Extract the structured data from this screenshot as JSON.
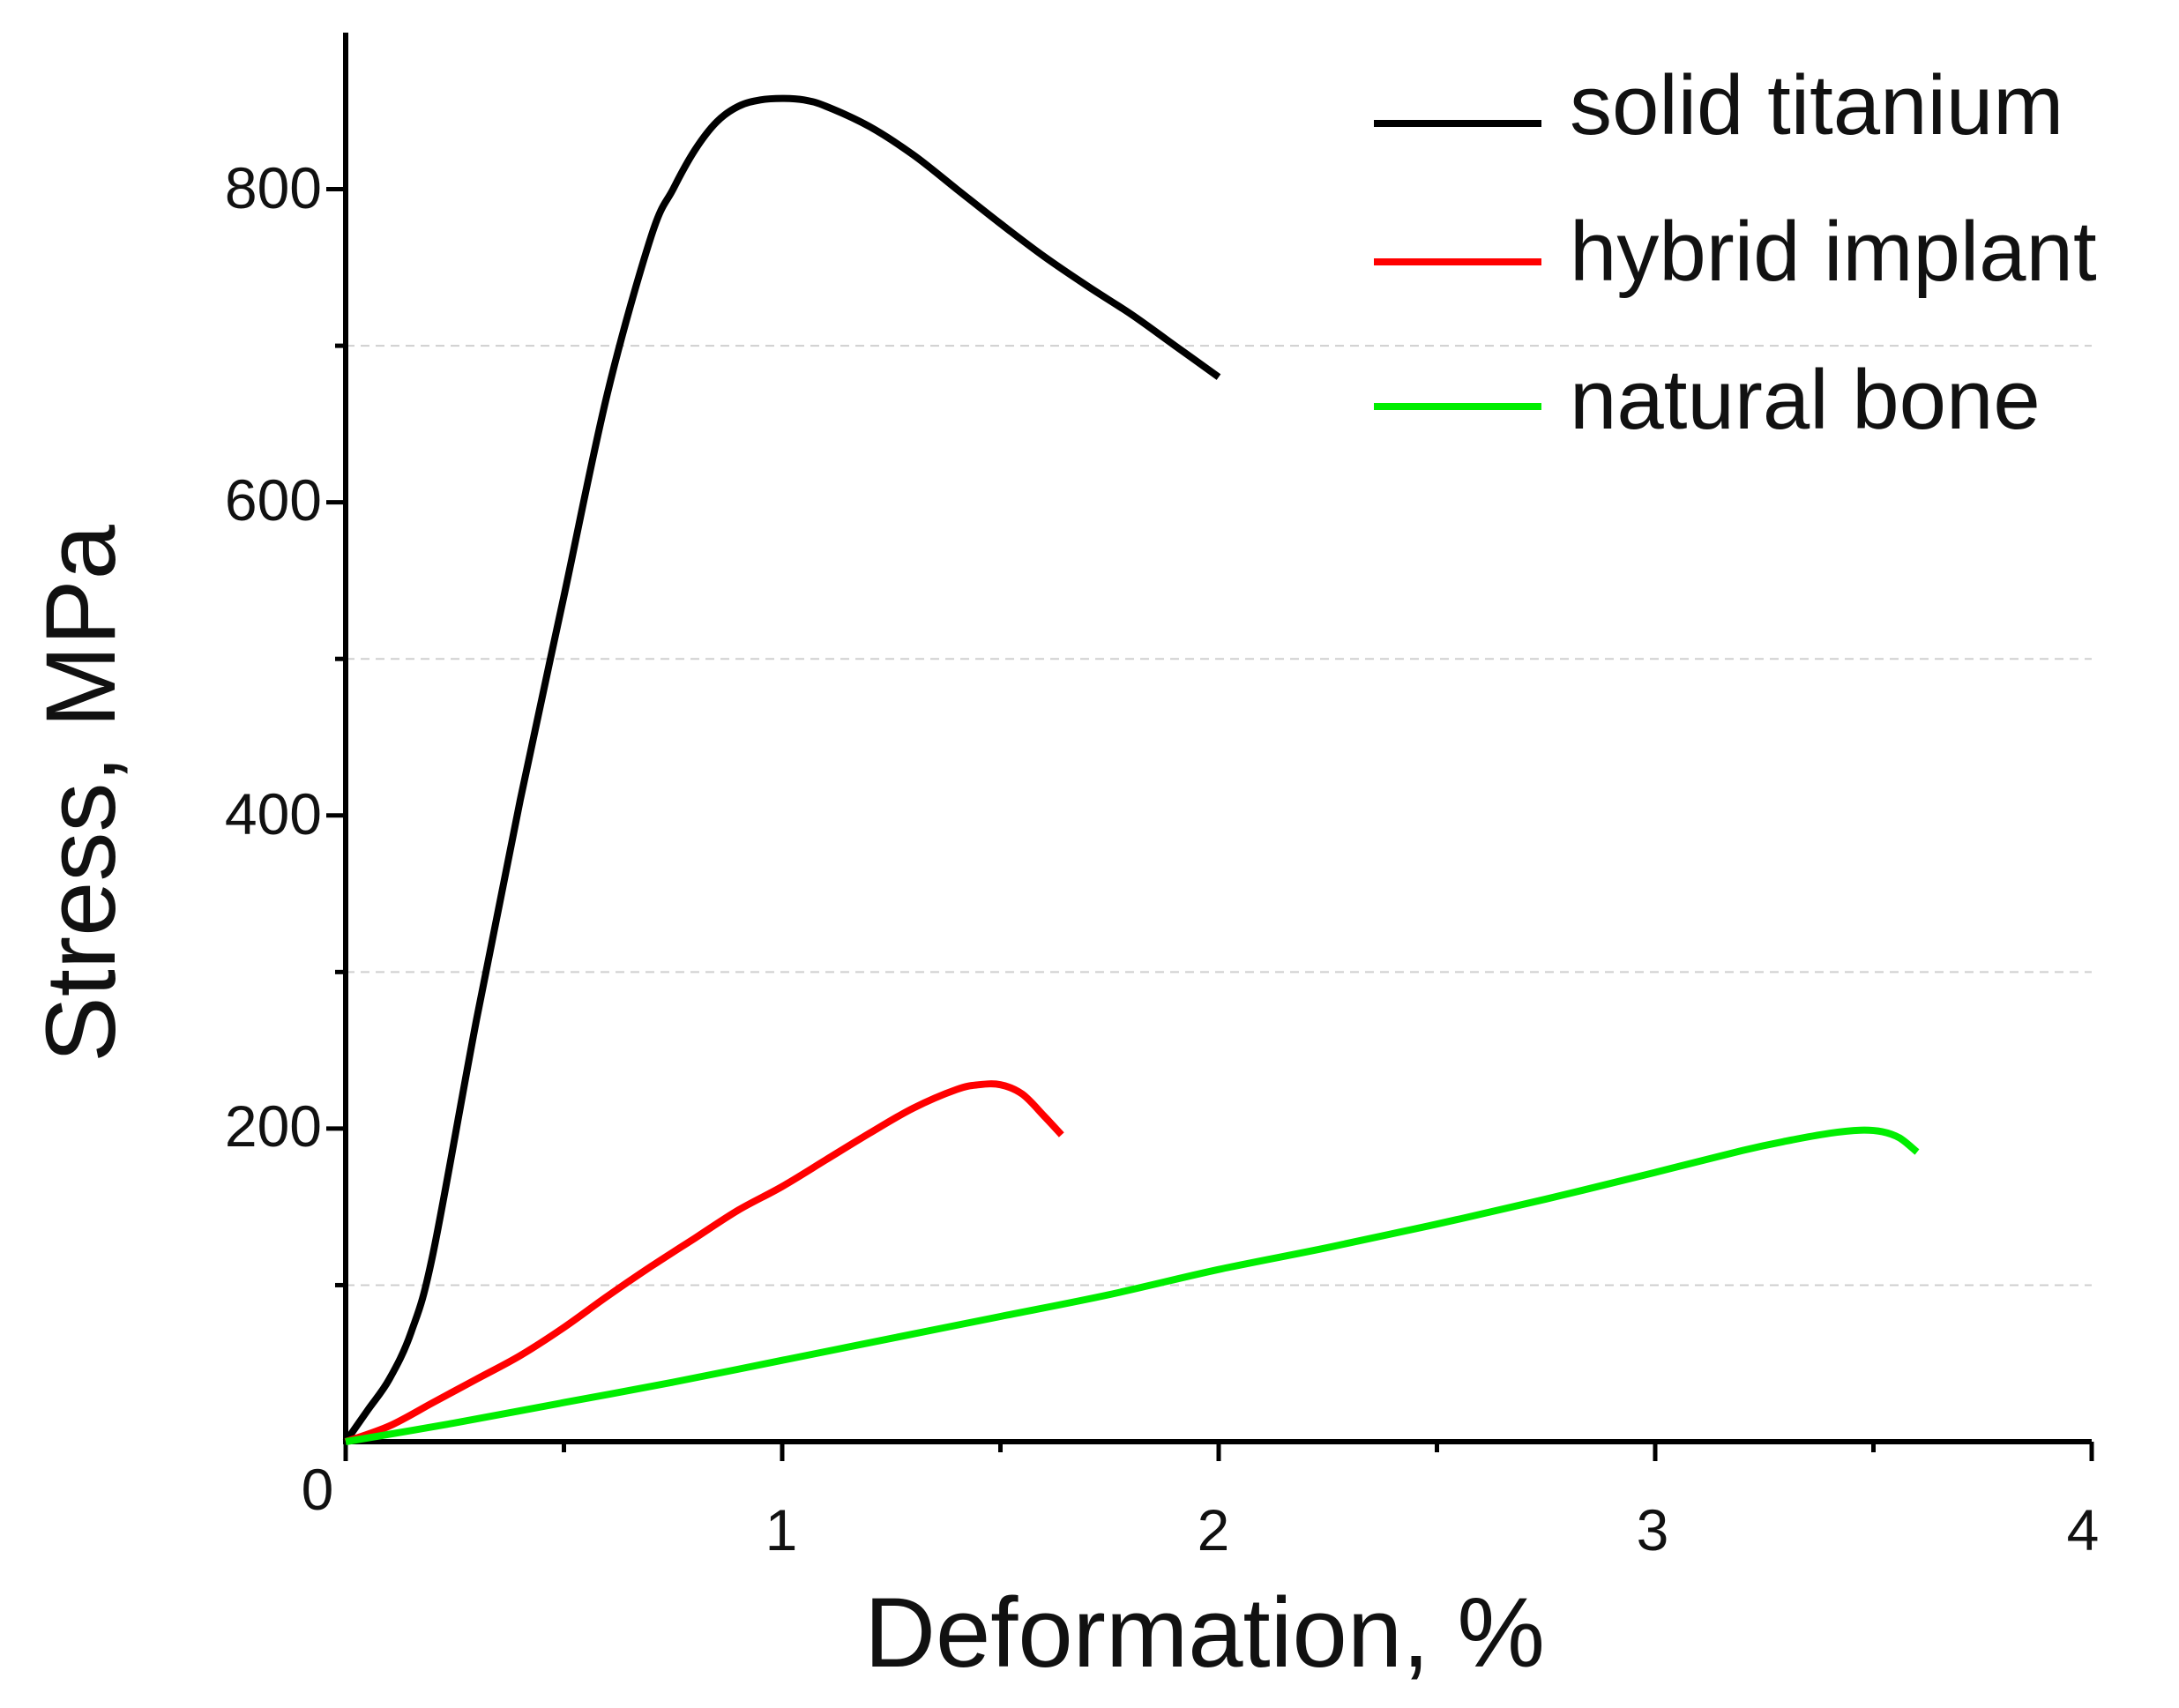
{
  "chart_data": {
    "type": "line",
    "title": "",
    "xlabel": "Deformation, %",
    "ylabel": "Stress, MPa",
    "xlim": [
      0,
      4
    ],
    "ylim": [
      0,
      900
    ],
    "xticks": [
      0,
      1,
      2,
      3,
      4
    ],
    "xtick_labels": [
      "0",
      "1",
      "2",
      "3",
      "4"
    ],
    "yticks": [
      200,
      400,
      600,
      800
    ],
    "ytick_labels": [
      "200",
      "400",
      "600",
      "800"
    ],
    "grid": "dashed horizontal at 100, 300, 500, 700",
    "legend_position": "top-right",
    "series": [
      {
        "name": "solid titanium",
        "color": "#000000",
        "x": [
          0,
          0.05,
          0.1,
          0.15,
          0.2,
          0.3,
          0.4,
          0.5,
          0.6,
          0.7,
          0.75,
          0.8,
          0.85,
          0.9,
          0.95,
          1.0,
          1.05,
          1.1,
          1.2,
          1.3,
          1.4,
          1.5,
          1.6,
          1.7,
          1.8,
          1.9,
          2.0
        ],
        "y": [
          0,
          20,
          40,
          70,
          120,
          270,
          410,
          540,
          670,
          770,
          800,
          825,
          843,
          853,
          857,
          858,
          857,
          853,
          840,
          822,
          800,
          778,
          757,
          738,
          720,
          700,
          680
        ]
      },
      {
        "name": "hybrid implant",
        "color": "#ff0000",
        "x": [
          0,
          0.1,
          0.2,
          0.3,
          0.4,
          0.5,
          0.6,
          0.7,
          0.8,
          0.9,
          1.0,
          1.1,
          1.2,
          1.3,
          1.4,
          1.45,
          1.5,
          1.55,
          1.6,
          1.64
        ],
        "y": [
          0,
          10,
          25,
          40,
          55,
          73,
          93,
          112,
          130,
          148,
          163,
          180,
          197,
          213,
          225,
          228,
          228,
          222,
          208,
          196
        ]
      },
      {
        "name": "natural bone",
        "color": "#00ee00",
        "x": [
          0,
          0.25,
          0.5,
          0.75,
          1.0,
          1.25,
          1.5,
          1.75,
          2.0,
          2.25,
          2.5,
          2.75,
          3.0,
          3.2,
          3.3,
          3.4,
          3.47,
          3.52,
          3.56,
          3.6
        ],
        "y": [
          0,
          12,
          25,
          38,
          52,
          66,
          80,
          94,
          110,
          124,
          139,
          155,
          172,
          186,
          192,
          197,
          199,
          198,
          194,
          185
        ]
      }
    ]
  }
}
